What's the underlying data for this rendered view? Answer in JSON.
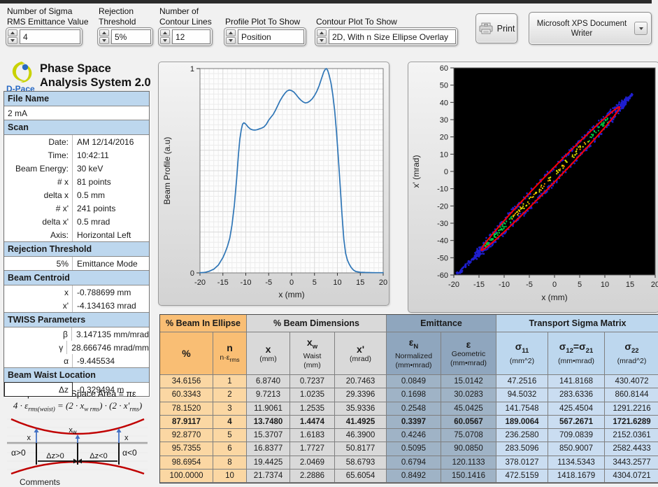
{
  "window": {
    "comments_label": "Comments"
  },
  "toolbar": {
    "controls": [
      {
        "label_line1": "Number of Sigma",
        "label_line2": "RMS Emittance Value",
        "value": "4"
      },
      {
        "label_line1": "Rejection",
        "label_line2": "Threshold",
        "value": "5%"
      },
      {
        "label_line1": "Number of",
        "label_line2": "Contour Lines",
        "value": "12"
      },
      {
        "label_line1": "Profile Plot To Show",
        "label_line2": "",
        "value": "Position"
      },
      {
        "label_line1": "Contour Plot To Show",
        "label_line2": "",
        "value": "2D, With n Size Ellipse Overlay"
      }
    ],
    "print_button": {
      "label": "Print"
    },
    "printer_selector": {
      "line1": "Microsoft XPS Document",
      "line2": "Writer"
    }
  },
  "branding": {
    "logo_text": "D-Pace",
    "title_line1": "Phase Space",
    "title_line2": "Analysis System 2.0"
  },
  "sidebar": {
    "rows": [
      {
        "type": "header",
        "label": "File Name"
      },
      {
        "type": "full",
        "value": "2 mA"
      },
      {
        "type": "header",
        "label": "Scan"
      },
      {
        "type": "kv",
        "label": "Date:",
        "value": "AM 12/14/2016"
      },
      {
        "type": "kv",
        "label": "Time:",
        "value": "10:42:11"
      },
      {
        "type": "kv",
        "label": "Beam Energy:",
        "value": "30 keV"
      },
      {
        "type": "kv",
        "label": "# x",
        "value": "81 points"
      },
      {
        "type": "kv",
        "label": "delta x",
        "value": "0.5 mm"
      },
      {
        "type": "kv",
        "label": "# x'",
        "value": "241 points"
      },
      {
        "type": "kv",
        "label": "delta x'",
        "value": "0.5 mrad"
      },
      {
        "type": "kv",
        "label": "Axis:",
        "value": "Horizontal Left"
      },
      {
        "type": "header",
        "label": "Rejection Threshold"
      },
      {
        "type": "kv",
        "label": "5%",
        "value": "Emittance Mode"
      },
      {
        "type": "header",
        "label": "Beam Centroid"
      },
      {
        "type": "kv",
        "label": "x",
        "value": "-0.788699 mm"
      },
      {
        "type": "kv",
        "label": "x'",
        "value": "-4.134163 mrad"
      },
      {
        "type": "header",
        "label": "TWISS Parameters"
      },
      {
        "type": "kv",
        "label": "β",
        "value": "3.147135 mm/mrad"
      },
      {
        "type": "kv",
        "label": "γ",
        "value": "28.666746 mrad/mm"
      },
      {
        "type": "kv",
        "label": "α",
        "value": "-9.445534"
      },
      {
        "type": "header",
        "label": "Beam Waist Location"
      },
      {
        "type": "kv",
        "label": "Δz",
        "value": "-0.329494 m",
        "boxed": true
      }
    ]
  },
  "formula": {
    "area_line": "Ellipse Phase Space Area = πε",
    "rms_line_segments": [
      {
        "t": "4 · ε",
        "s": "rms(waist)"
      },
      {
        "t": " = (2 · x",
        "s": "w rms"
      },
      {
        "t": ") · (2 · x'",
        "s": "rms"
      },
      {
        "t": ")"
      }
    ]
  },
  "waist_diagram": {
    "labels": {
      "x_left": "x",
      "x_waist_main": "x",
      "x_waist_sub": "w",
      "x_right": "x",
      "alpha_left": "α>0",
      "alpha_right": "α<0",
      "dz_left": "Δz>0",
      "dz_right": "Δz<0"
    }
  },
  "results_table": {
    "groups": [
      {
        "label": "% Beam In Ellipse"
      },
      {
        "label": "% Beam Dimensions"
      },
      {
        "label": "Emittance"
      },
      {
        "label": "Transport Sigma Matrix"
      }
    ],
    "columns": [
      {
        "group": 0,
        "lines": [
          [
            {
              "t": "%"
            }
          ]
        ]
      },
      {
        "group": 0,
        "lines": [
          [
            {
              "t": "n"
            }
          ],
          [
            {
              "t": "n·ε",
              "s": "rms"
            }
          ]
        ]
      },
      {
        "group": 1,
        "lines": [
          [
            {
              "t": "x"
            }
          ],
          [
            {
              "t": "(mm)"
            }
          ]
        ]
      },
      {
        "group": 1,
        "lines": [
          [
            {
              "t": "x",
              "s": "w"
            }
          ],
          [
            {
              "t": "Waist"
            }
          ],
          [
            {
              "t": "(mm)"
            }
          ]
        ]
      },
      {
        "group": 1,
        "lines": [
          [
            {
              "t": "x'"
            }
          ],
          [
            {
              "t": "(mrad)"
            }
          ]
        ]
      },
      {
        "group": 2,
        "lines": [
          [
            {
              "t": "ε",
              "s": "N"
            }
          ],
          [
            {
              "t": "Normalized"
            }
          ],
          [
            {
              "t": "(mm•mrad)"
            }
          ]
        ]
      },
      {
        "group": 2,
        "lines": [
          [
            {
              "t": "ε"
            }
          ],
          [
            {
              "t": "Geometric"
            }
          ],
          [
            {
              "t": "(mm•mrad)"
            }
          ]
        ]
      },
      {
        "group": 3,
        "lines": [
          [
            {
              "t": "σ",
              "s": "11"
            }
          ],
          [
            {
              "t": "(mm^2)"
            }
          ]
        ]
      },
      {
        "group": 3,
        "lines": [
          [
            {
              "t": "σ",
              "s": "12"
            },
            {
              "t": "=σ",
              "s": "21"
            }
          ],
          [
            {
              "t": "(mm•mrad)"
            }
          ]
        ]
      },
      {
        "group": 3,
        "lines": [
          [
            {
              "t": "σ",
              "s": "22"
            }
          ],
          [
            {
              "t": "(mrad^2)"
            }
          ]
        ]
      }
    ],
    "rows": [
      {
        "bold": false,
        "values": [
          "34.6156",
          "1",
          "6.8740",
          "0.7237",
          "20.7463",
          "0.0849",
          "15.0142",
          "47.2516",
          "141.8168",
          "430.4072"
        ]
      },
      {
        "bold": false,
        "values": [
          "60.3343",
          "2",
          "9.7213",
          "1.0235",
          "29.3396",
          "0.1698",
          "30.0283",
          "94.5032",
          "283.6336",
          "860.8144"
        ]
      },
      {
        "bold": false,
        "values": [
          "78.1520",
          "3",
          "11.9061",
          "1.2535",
          "35.9336",
          "0.2548",
          "45.0425",
          "141.7548",
          "425.4504",
          "1291.2216"
        ]
      },
      {
        "bold": true,
        "values": [
          "87.9117",
          "4",
          "13.7480",
          "1.4474",
          "41.4925",
          "0.3397",
          "60.0567",
          "189.0064",
          "567.2671",
          "1721.6289"
        ]
      },
      {
        "bold": false,
        "values": [
          "92.8770",
          "5",
          "15.3707",
          "1.6183",
          "46.3900",
          "0.4246",
          "75.0708",
          "236.2580",
          "709.0839",
          "2152.0361"
        ]
      },
      {
        "bold": false,
        "values": [
          "95.7355",
          "6",
          "16.8377",
          "1.7727",
          "50.8177",
          "0.5095",
          "90.0850",
          "283.5096",
          "850.9007",
          "2582.4433"
        ]
      },
      {
        "bold": false,
        "values": [
          "98.6954",
          "8",
          "19.4425",
          "2.0469",
          "58.6793",
          "0.6794",
          "120.1133",
          "378.0127",
          "1134.5343",
          "3443.2577"
        ]
      },
      {
        "bold": false,
        "values": [
          "100.0000",
          "10",
          "21.7374",
          "2.2886",
          "65.6054",
          "0.8492",
          "150.1416",
          "472.5159",
          "1418.1679",
          "4304.0721"
        ]
      }
    ]
  },
  "chart_data": [
    {
      "id": "beam_profile",
      "type": "line",
      "title": "",
      "xlabel": "x (mm)",
      "ylabel": "Beam Profile (a.u)",
      "xlim": [
        -20,
        20
      ],
      "ylim": [
        0,
        1
      ],
      "xtick_step": 5,
      "ytick_step": 0.1,
      "grid": true,
      "line_color": "#2E75B6",
      "points": [
        [
          -20,
          0.001
        ],
        [
          -19,
          0.002
        ],
        [
          -18,
          0.008
        ],
        [
          -17,
          0.018
        ],
        [
          -16,
          0.038
        ],
        [
          -15,
          0.075
        ],
        [
          -14.5,
          0.1
        ],
        [
          -14,
          0.13
        ],
        [
          -13.5,
          0.17
        ],
        [
          -13,
          0.235
        ],
        [
          -12.5,
          0.33
        ],
        [
          -12,
          0.46
        ],
        [
          -11.6,
          0.58
        ],
        [
          -11.3,
          0.655
        ],
        [
          -11,
          0.7
        ],
        [
          -10.7,
          0.728
        ],
        [
          -10.4,
          0.735
        ],
        [
          -10,
          0.728
        ],
        [
          -9.5,
          0.714
        ],
        [
          -9,
          0.704
        ],
        [
          -8.5,
          0.7
        ],
        [
          -8,
          0.699
        ],
        [
          -7.5,
          0.701
        ],
        [
          -7,
          0.705
        ],
        [
          -6.5,
          0.709
        ],
        [
          -6,
          0.715
        ],
        [
          -5.5,
          0.728
        ],
        [
          -5,
          0.748
        ],
        [
          -4.5,
          0.762
        ],
        [
          -4,
          0.776
        ],
        [
          -3.5,
          0.797
        ],
        [
          -3,
          0.82
        ],
        [
          -2.5,
          0.843
        ],
        [
          -2,
          0.862
        ],
        [
          -1.5,
          0.878
        ],
        [
          -1,
          0.89
        ],
        [
          -0.5,
          0.895
        ],
        [
          0,
          0.892
        ],
        [
          0.5,
          0.885
        ],
        [
          1,
          0.872
        ],
        [
          1.5,
          0.858
        ],
        [
          2,
          0.846
        ],
        [
          2.5,
          0.837
        ],
        [
          3,
          0.832
        ],
        [
          3.5,
          0.834
        ],
        [
          4,
          0.841
        ],
        [
          4.5,
          0.852
        ],
        [
          5,
          0.868
        ],
        [
          5.5,
          0.888
        ],
        [
          6,
          0.915
        ],
        [
          6.5,
          0.949
        ],
        [
          7,
          0.983
        ],
        [
          7.4,
          0.998
        ],
        [
          7.6,
          1.0
        ],
        [
          7.9,
          0.99
        ],
        [
          8.2,
          0.968
        ],
        [
          8.6,
          0.93
        ],
        [
          9,
          0.873
        ],
        [
          9.4,
          0.795
        ],
        [
          9.8,
          0.69
        ],
        [
          10.2,
          0.565
        ],
        [
          10.6,
          0.43
        ],
        [
          11,
          0.285
        ],
        [
          11.4,
          0.165
        ],
        [
          11.8,
          0.095
        ],
        [
          12.2,
          0.062
        ],
        [
          12.6,
          0.042
        ],
        [
          13,
          0.027
        ],
        [
          13.5,
          0.014
        ],
        [
          14,
          0.007
        ],
        [
          15,
          0.003
        ],
        [
          16,
          0.002
        ],
        [
          18,
          0.001
        ],
        [
          20,
          0.001
        ]
      ]
    },
    {
      "id": "phase_space_contour",
      "type": "scatter",
      "title": "",
      "xlabel": "x (mm)",
      "ylabel": "x' (mrad)",
      "xlim": [
        -20,
        20
      ],
      "ylim": [
        -60,
        60
      ],
      "xtick_step": 5,
      "ytick_step": 10,
      "background": "#000000",
      "overlay_ellipse": {
        "n": 4,
        "emittance_geometric": 60.0567,
        "beta": 3.147135,
        "alpha": -9.445534,
        "center_x": -0.788699,
        "center_xp": -4.134163,
        "color": "#FF0000"
      },
      "halo_color": "#1F1FD0",
      "core_colors": {
        "yellow": "#E2E200",
        "orange": "#FF9000",
        "green": "#00CC44"
      }
    }
  ]
}
